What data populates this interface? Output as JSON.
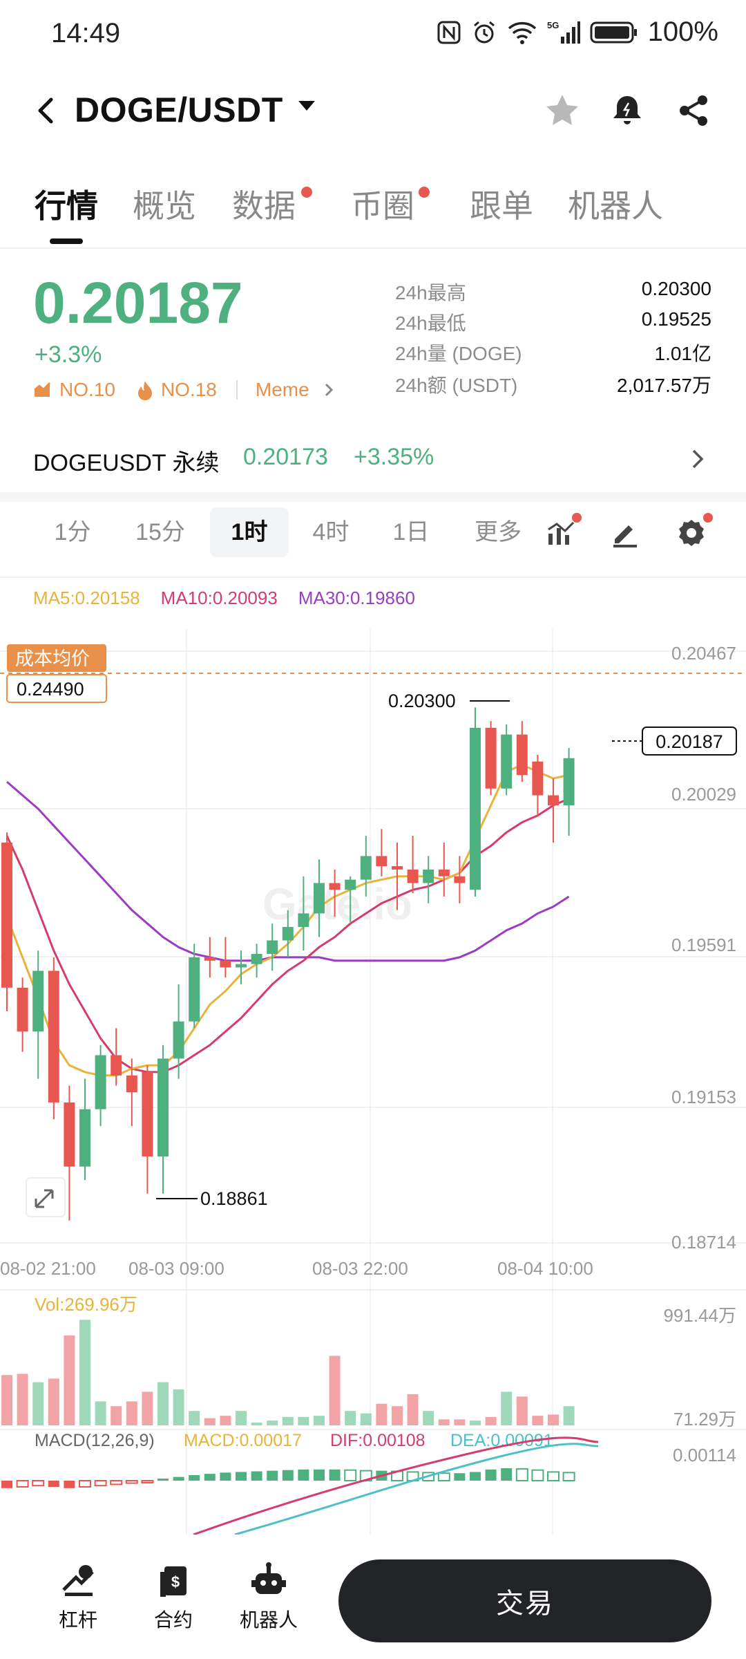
{
  "status_bar": {
    "time": "14:49",
    "battery": "100%",
    "network": "5G"
  },
  "header": {
    "title": "DOGE/USDT",
    "icons": [
      "back-arrow-icon",
      "star-icon",
      "bell-icon",
      "share-icon"
    ]
  },
  "tabs": [
    {
      "label": "行情",
      "active": true,
      "dot": false
    },
    {
      "label": "概览",
      "active": false,
      "dot": false
    },
    {
      "label": "数据",
      "active": false,
      "dot": true
    },
    {
      "label": "币圈",
      "active": false,
      "dot": true
    },
    {
      "label": "跟单",
      "active": false,
      "dot": false
    },
    {
      "label": "机器人",
      "active": false,
      "dot": false
    }
  ],
  "ticker": {
    "price": "0.20187",
    "change_pct": "+3.3%",
    "rank1": "NO.10",
    "rank2": "NO.18",
    "tag": "Meme",
    "stats": [
      {
        "label": "24h最高",
        "value": "0.20300"
      },
      {
        "label": "24h最低",
        "value": "0.19525"
      },
      {
        "label": "24h量 (DOGE)",
        "value": "1.01亿"
      },
      {
        "label": "24h额 (USDT)",
        "value": "2,017.57万"
      }
    ]
  },
  "perpetual": {
    "name": "DOGEUSDT 永续",
    "price": "0.20173",
    "change": "+3.35%"
  },
  "timeframes": [
    {
      "label": "1分",
      "active": false
    },
    {
      "label": "15分",
      "active": false
    },
    {
      "label": "1时",
      "active": true
    },
    {
      "label": "4时",
      "active": false
    },
    {
      "label": "1日",
      "active": false
    },
    {
      "label": "更多",
      "active": false
    }
  ],
  "chart": {
    "ma5": "MA5:0.20158",
    "ma10": "MA10:0.20093",
    "ma30": "MA30:0.19860",
    "cost_label": "成本均价",
    "cost_value": "0.24490",
    "high_marker": "0.20300",
    "low_marker": "0.18861",
    "current_price_tag": "0.20187",
    "watermark": "Gate.io",
    "price_axis": [
      "0.20467",
      "0.20029",
      "0.19591",
      "0.19153",
      "0.18714"
    ],
    "time_axis": [
      "08-02 21:00",
      "08-03 09:00",
      "08-03 22:00",
      "08-04 10:00"
    ],
    "vol_label": "Vol:269.96万",
    "vol_max": "991.44万",
    "vol_min": "71.29万",
    "macd_params": "MACD(12,26,9)",
    "macd_value": "MACD:0.00017",
    "dif_value": "DIF:0.00108",
    "dea_value": "DEA:0.00091",
    "macd_axis": "0.00114",
    "colors": {
      "up": "#4fb07f",
      "down": "#e8574f",
      "ma5": "#e9b33a",
      "ma10": "#d63c6a",
      "ma30": "#9a3cc4"
    }
  },
  "chart_data": {
    "type": "candlestick",
    "interval": "1时",
    "y_range": [
      0.18714,
      0.20467
    ],
    "candles": [
      {
        "o": 0.199,
        "h": 0.1993,
        "l": 0.194,
        "c": 0.1947
      },
      {
        "o": 0.1947,
        "h": 0.195,
        "l": 0.1928,
        "c": 0.1934
      },
      {
        "o": 0.1934,
        "h": 0.1958,
        "l": 0.192,
        "c": 0.1952
      },
      {
        "o": 0.1952,
        "h": 0.1956,
        "l": 0.1908,
        "c": 0.1913
      },
      {
        "o": 0.1913,
        "h": 0.1918,
        "l": 0.1878,
        "c": 0.1894
      },
      {
        "o": 0.1894,
        "h": 0.192,
        "l": 0.189,
        "c": 0.1911
      },
      {
        "o": 0.1911,
        "h": 0.193,
        "l": 0.1906,
        "c": 0.1927
      },
      {
        "o": 0.1927,
        "h": 0.1935,
        "l": 0.1918,
        "c": 0.1921
      },
      {
        "o": 0.1921,
        "h": 0.1926,
        "l": 0.1906,
        "c": 0.1916
      },
      {
        "o": 0.1922,
        "h": 0.1924,
        "l": 0.1886,
        "c": 0.1897
      },
      {
        "o": 0.1897,
        "h": 0.193,
        "l": 0.1886,
        "c": 0.1926
      },
      {
        "o": 0.1926,
        "h": 0.1948,
        "l": 0.192,
        "c": 0.1937
      },
      {
        "o": 0.1937,
        "h": 0.196,
        "l": 0.1935,
        "c": 0.1956
      },
      {
        "o": 0.1956,
        "h": 0.1962,
        "l": 0.195,
        "c": 0.1955
      },
      {
        "o": 0.1955,
        "h": 0.1962,
        "l": 0.195,
        "c": 0.1953
      },
      {
        "o": 0.1953,
        "h": 0.1958,
        "l": 0.1948,
        "c": 0.1954
      },
      {
        "o": 0.1954,
        "h": 0.196,
        "l": 0.195,
        "c": 0.1957
      },
      {
        "o": 0.1957,
        "h": 0.1966,
        "l": 0.1952,
        "c": 0.1961
      },
      {
        "o": 0.1961,
        "h": 0.197,
        "l": 0.1956,
        "c": 0.1965
      },
      {
        "o": 0.1965,
        "h": 0.198,
        "l": 0.1958,
        "c": 0.1969
      },
      {
        "o": 0.1969,
        "h": 0.1985,
        "l": 0.1962,
        "c": 0.1978
      },
      {
        "o": 0.1978,
        "h": 0.1982,
        "l": 0.1968,
        "c": 0.1976
      },
      {
        "o": 0.1976,
        "h": 0.198,
        "l": 0.1966,
        "c": 0.1979
      },
      {
        "o": 0.1979,
        "h": 0.1992,
        "l": 0.1974,
        "c": 0.1986
      },
      {
        "o": 0.1986,
        "h": 0.1994,
        "l": 0.198,
        "c": 0.1983
      },
      {
        "o": 0.1983,
        "h": 0.199,
        "l": 0.197,
        "c": 0.1982
      },
      {
        "o": 0.1982,
        "h": 0.1992,
        "l": 0.1975,
        "c": 0.1978
      },
      {
        "o": 0.1978,
        "h": 0.1986,
        "l": 0.1972,
        "c": 0.1982
      },
      {
        "o": 0.1982,
        "h": 0.199,
        "l": 0.1974,
        "c": 0.198
      },
      {
        "o": 0.198,
        "h": 0.1986,
        "l": 0.1972,
        "c": 0.1978
      },
      {
        "o": 0.1976,
        "h": 0.203,
        "l": 0.1974,
        "c": 0.2024
      },
      {
        "o": 0.2024,
        "h": 0.2026,
        "l": 0.2004,
        "c": 0.2006
      },
      {
        "o": 0.2006,
        "h": 0.2025,
        "l": 0.2004,
        "c": 0.2022
      },
      {
        "o": 0.2022,
        "h": 0.2026,
        "l": 0.2008,
        "c": 0.201
      },
      {
        "o": 0.2014,
        "h": 0.2016,
        "l": 0.1998,
        "c": 0.2004
      },
      {
        "o": 0.2004,
        "h": 0.2009,
        "l": 0.199,
        "c": 0.2001
      },
      {
        "o": 0.2001,
        "h": 0.2018,
        "l": 0.1992,
        "c": 0.2015
      }
    ],
    "ma5": [
      0.1968,
      0.1956,
      0.1944,
      0.1931,
      0.1924,
      0.1922,
      0.1921,
      0.1921,
      0.1923,
      0.1924,
      0.1924,
      0.1928,
      0.1935,
      0.1942,
      0.1946,
      0.1951,
      0.1954,
      0.1956,
      0.196,
      0.1965,
      0.1971,
      0.1974,
      0.1976,
      0.1978,
      0.1979,
      0.198,
      0.198,
      0.198,
      0.1979,
      0.1981,
      0.1991,
      0.2001,
      0.2011,
      0.2013,
      0.2011,
      0.2009,
      0.201
    ],
    "ma10": [
      0.1992,
      0.1982,
      0.197,
      0.1958,
      0.1948,
      0.194,
      0.1932,
      0.1926,
      0.1923,
      0.1922,
      0.1922,
      0.1924,
      0.1927,
      0.193,
      0.1934,
      0.1938,
      0.1943,
      0.1948,
      0.1952,
      0.1955,
      0.1959,
      0.1962,
      0.1966,
      0.1969,
      0.1972,
      0.1974,
      0.1976,
      0.1977,
      0.1979,
      0.1981,
      0.1986,
      0.1989,
      0.1993,
      0.1996,
      0.1998,
      0.2001,
      0.2003
    ],
    "ma30": [
      0.2008,
      0.2004,
      0.2,
      0.1995,
      0.199,
      0.1985,
      0.198,
      0.1975,
      0.197,
      0.1966,
      0.1962,
      0.1959,
      0.1957,
      0.1956,
      0.1955,
      0.1955,
      0.1955,
      0.1956,
      0.1956,
      0.1956,
      0.1956,
      0.1955,
      0.1955,
      0.1955,
      0.1955,
      0.1955,
      0.1955,
      0.1955,
      0.1955,
      0.1956,
      0.1958,
      0.1961,
      0.1964,
      0.1966,
      0.1969,
      0.1971,
      0.1974
    ],
    "volume": [
      420,
      430,
      360,
      390,
      750,
      880,
      200,
      160,
      200,
      280,
      360,
      300,
      120,
      60,
      80,
      120,
      20,
      40,
      70,
      70,
      80,
      580,
      120,
      100,
      180,
      160,
      260,
      120,
      50,
      50,
      40,
      70,
      280,
      240,
      80,
      90,
      160
    ],
    "macd_hist": [
      -0.00012,
      -0.0001,
      -8e-05,
      -0.0001,
      -0.00012,
      -0.0001,
      -8e-05,
      -6e-05,
      -4e-05,
      -2e-05,
      3e-05,
      6e-05,
      9e-05,
      0.00011,
      0.00013,
      0.00014,
      0.00015,
      0.00016,
      0.00017,
      0.00018,
      0.00018,
      0.00018,
      0.00017,
      0.00016,
      0.00016,
      0.00015,
      0.00014,
      0.00013,
      0.00012,
      0.00012,
      0.00014,
      0.00018,
      0.0002,
      0.00019,
      0.00017,
      0.00014,
      0.00013
    ]
  },
  "bottom_bar": {
    "items": [
      {
        "label": "杠杆",
        "icon": "leverage-icon"
      },
      {
        "label": "合约",
        "icon": "contract-icon"
      },
      {
        "label": "机器人",
        "icon": "robot-icon"
      }
    ],
    "trade_label": "交易"
  }
}
